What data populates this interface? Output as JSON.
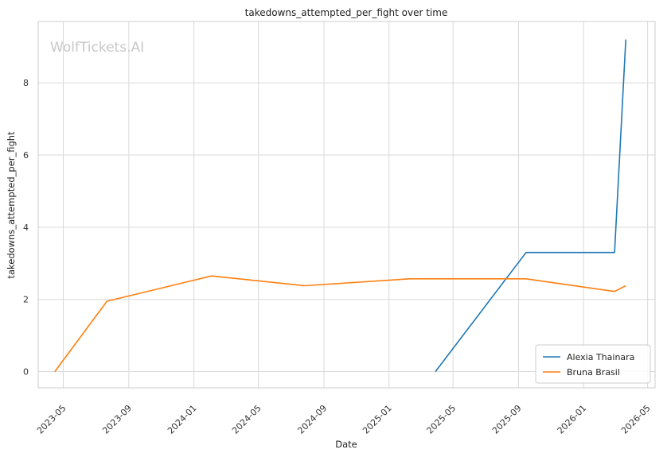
{
  "chart_data": {
    "type": "line",
    "title": "takedowns_attempted_per_fight over time",
    "xlabel": "Date",
    "ylabel": "takedowns_attempted_per_fight",
    "watermark": "WolfTickets.AI",
    "x_ticks": [
      "2023-05",
      "2023-09",
      "2024-01",
      "2024-05",
      "2024-09",
      "2025-01",
      "2025-05",
      "2025-09",
      "2026-01",
      "2026-05"
    ],
    "y_ticks": [
      0,
      2,
      4,
      6,
      8
    ],
    "xlim": [
      "2023-03-15",
      "2026-05-15"
    ],
    "ylim": [
      -0.45,
      9.7
    ],
    "grid": true,
    "legend_position": "bottom-right",
    "colors": {
      "Alexia Thainara": "#1f77b4",
      "Bruna Brasil": "#ff7f0e"
    },
    "series": [
      {
        "name": "Alexia Thainara",
        "x": [
          "2025-03-29",
          "2025-09-15",
          "2026-02-28",
          "2026-03-21"
        ],
        "y": [
          0,
          3.3,
          3.3,
          9.2
        ]
      },
      {
        "name": "Bruna Brasil",
        "x": [
          "2023-04-15",
          "2023-07-22",
          "2024-02-03",
          "2024-07-27",
          "2025-02-08",
          "2025-09-15",
          "2026-02-28",
          "2026-03-21"
        ],
        "y": [
          0,
          1.95,
          2.65,
          2.38,
          2.57,
          2.57,
          2.22,
          2.38
        ]
      }
    ]
  }
}
